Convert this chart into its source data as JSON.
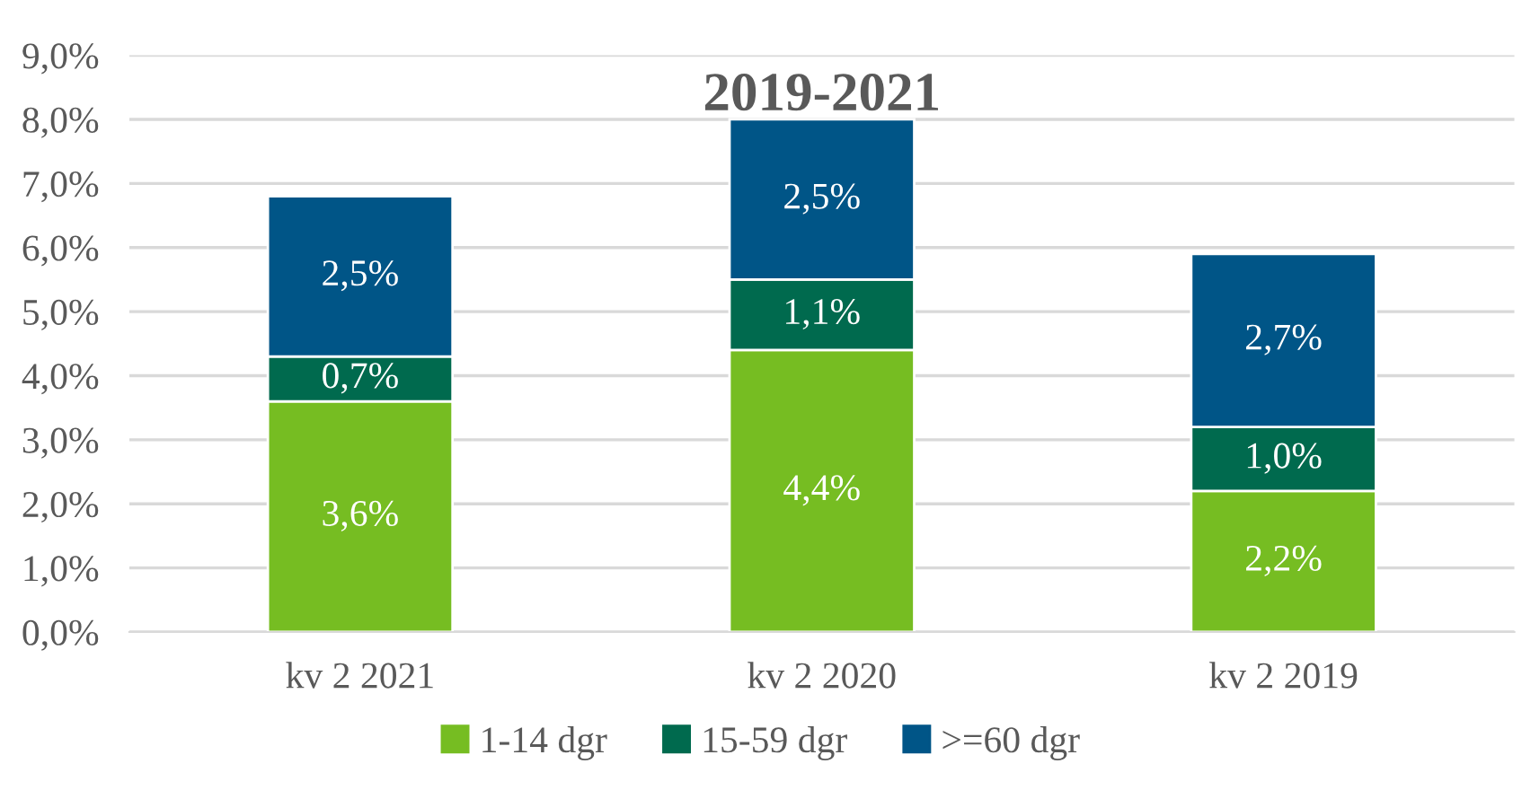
{
  "chart_data": {
    "type": "bar",
    "title": "2019-2021",
    "stacked": true,
    "categories": [
      "kv 2 2021",
      "kv 2 2020",
      "kv 2 2019"
    ],
    "series": [
      {
        "name": "1-14 dgr",
        "color": "#76bd22",
        "values": [
          3.6,
          4.4,
          2.2
        ],
        "value_labels": [
          "3,6%",
          "4,4%",
          "2,2%"
        ]
      },
      {
        "name": "15-59 dgr",
        "color": "#006a4e",
        "values": [
          0.7,
          1.1,
          1.0
        ],
        "value_labels": [
          "0,7%",
          "1,1%",
          "1,0%"
        ]
      },
      {
        "name": ">=60 dgr",
        "color": "#005587",
        "values": [
          2.5,
          2.5,
          2.7
        ],
        "value_labels": [
          "2,5%",
          "2,5%",
          "2,7%"
        ]
      }
    ],
    "ylim": [
      0,
      9
    ],
    "yticks": [
      {
        "value": 0,
        "label": "0,0%"
      },
      {
        "value": 1,
        "label": "1,0%"
      },
      {
        "value": 2,
        "label": "2,0%"
      },
      {
        "value": 3,
        "label": "3,0%"
      },
      {
        "value": 4,
        "label": "4,0%"
      },
      {
        "value": 5,
        "label": "5,0%"
      },
      {
        "value": 6,
        "label": "6,0%"
      },
      {
        "value": 7,
        "label": "7,0%"
      },
      {
        "value": 8,
        "label": "8,0%"
      },
      {
        "value": 9,
        "label": "9,0%"
      }
    ],
    "grid": "y",
    "legend": "bottom"
  }
}
